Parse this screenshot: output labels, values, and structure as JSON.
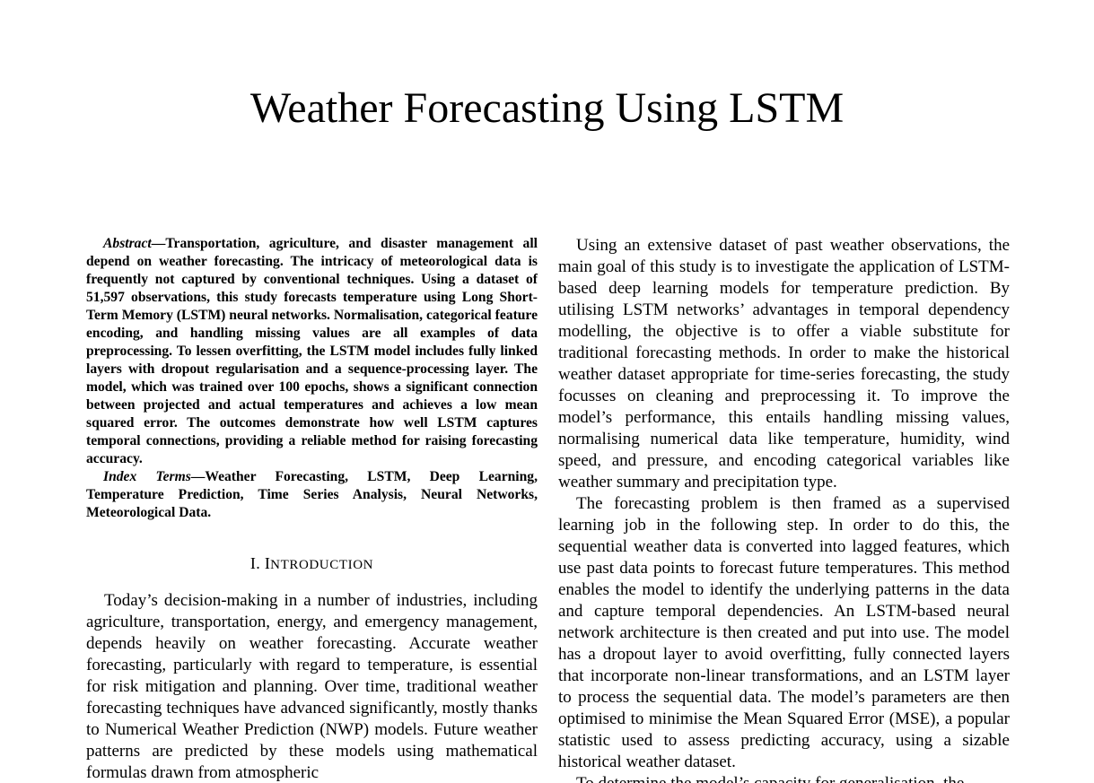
{
  "paper": {
    "title": "Weather Forecasting Using LSTM",
    "abstract": {
      "lead": "Abstract",
      "dash": "—",
      "text": "Transportation, agriculture, and disaster management all depend on weather forecasting. The intricacy of meteorological data is frequently not captured by conventional techniques. Using a dataset of 51,597 observations, this study forecasts temperature using Long Short-Term Memory (LSTM) neural networks. Normalisation, categorical feature encoding, and handling missing values are all examples of data preprocessing. To lessen overfitting, the LSTM model includes fully linked layers with dropout regularisation and a sequence-processing layer. The model, which was trained over 100 epochs, shows a significant connection between projected and actual temperatures and achieves a low mean squared error. The outcomes demonstrate how well LSTM captures temporal connections, providing a reliable method for raising forecasting accuracy."
    },
    "index_terms": {
      "lead": "Index Terms",
      "dash": "—",
      "text": "Weather Forecasting, LSTM, Deep Learning, Temperature Prediction, Time Series Analysis, Neural Networks, Meteorological Data."
    },
    "section": {
      "number": "I.",
      "first_letter": "I",
      "rest": "NTRODUCTION"
    },
    "intro_paragraph": "Today’s decision-making in a number of industries, including agriculture, transportation, energy, and emergency management, depends heavily on weather forecasting. Accurate weather forecasting, particularly with regard to temperature, is essential for risk mitigation and planning. Over time, traditional weather forecasting techniques have advanced significantly, mostly thanks to Numerical Weather Prediction (NWP) models. Future weather patterns are predicted by these models using mathematical formulas drawn from atmospheric",
    "right_paragraphs": [
      "Using an extensive dataset of past weather observations, the main goal of this study is to investigate the application of LSTM-based deep learning models for temperature prediction. By utilising LSTM networks’ advantages in temporal dependency modelling, the objective is to offer a viable substitute for traditional forecasting methods. In order to make the historical weather dataset appropriate for time-series forecasting, the study focusses on cleaning and preprocessing it. To improve the model’s performance, this entails handling missing values, normalising numerical data like temperature, humidity, wind speed, and pressure, and encoding categorical variables like weather summary and precipitation type.",
      "The forecasting problem is then framed as a supervised learning job in the following step. In order to do this, the sequential weather data is converted into lagged features, which use past data points to forecast future temperatures. This method enables the model to identify the underlying patterns in the data and capture temporal dependencies. An LSTM-based neural network architecture is then created and put into use. The model has a dropout layer to avoid overfitting, fully connected layers that incorporate non-linear transformations, and an LSTM layer to process the sequential data. The model’s parameters are then optimised to minimise the Mean Squared Error (MSE), a popular statistic used to assess predicting accuracy, using a sizable historical weather dataset.",
      "To determine the model’s capacity for generalisation, the"
    ]
  }
}
